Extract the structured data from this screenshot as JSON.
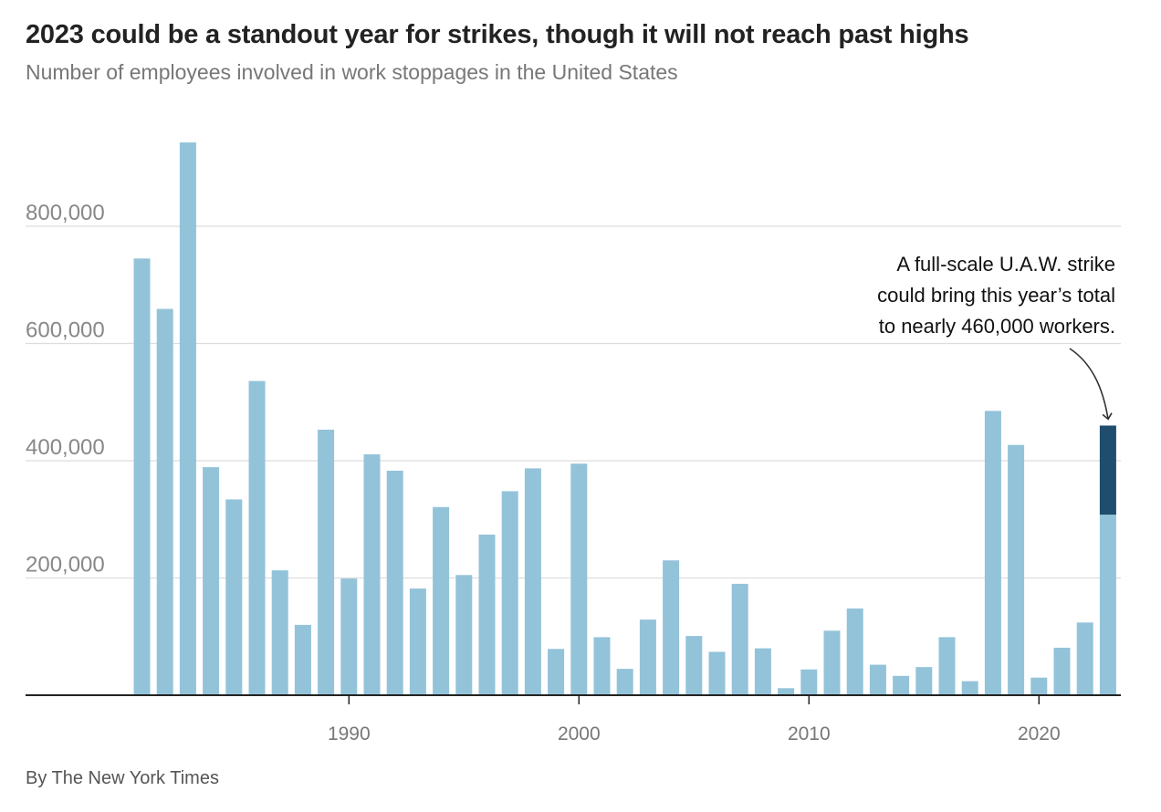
{
  "title": "2023 could be a standout year for strikes, though it will not reach past highs",
  "subtitle": "Number of employees involved in work stoppages in the United States",
  "source": "By The New York Times",
  "colors": {
    "bar": "#93c3d9",
    "highlight": "#1e4d6e",
    "grid": "#dddddd",
    "axis": "#222222"
  },
  "chart_data": {
    "type": "bar",
    "title": "2023 could be a standout year for strikes, though it will not reach past highs",
    "subtitle": "Number of employees involved in work stoppages in the United States",
    "xlabel": "",
    "ylabel": "",
    "ylim": [
      0,
      950000
    ],
    "grid": true,
    "x": [
      1981,
      1982,
      1983,
      1984,
      1985,
      1986,
      1987,
      1988,
      1989,
      1990,
      1991,
      1992,
      1993,
      1994,
      1995,
      1996,
      1997,
      1998,
      1999,
      2000,
      2001,
      2002,
      2003,
      2004,
      2005,
      2006,
      2007,
      2008,
      2009,
      2010,
      2011,
      2012,
      2013,
      2014,
      2015,
      2016,
      2017,
      2018,
      2019,
      2020,
      2021,
      2022,
      2023
    ],
    "values": [
      745000,
      659000,
      943000,
      389000,
      334000,
      536000,
      213000,
      120000,
      453000,
      199000,
      411000,
      383000,
      182000,
      321000,
      205000,
      274000,
      348000,
      387000,
      79000,
      395000,
      99000,
      45000,
      129000,
      230000,
      101000,
      74000,
      190000,
      80000,
      12000,
      44000,
      110000,
      148000,
      52000,
      33000,
      48000,
      99000,
      24000,
      485000,
      427000,
      30000,
      81000,
      124000,
      308000
    ],
    "highlight": {
      "year": 2023,
      "base": 308000,
      "top": 460000
    },
    "y_ticks": [
      {
        "value": 200000,
        "label": "200,000"
      },
      {
        "value": 400000,
        "label": "400,000"
      },
      {
        "value": 600000,
        "label": "600,000"
      },
      {
        "value": 800000,
        "label": "800,000"
      }
    ],
    "x_ticks": [
      {
        "value": 1990,
        "label": "1990"
      },
      {
        "value": 2000,
        "label": "2000"
      },
      {
        "value": 2010,
        "label": "2010"
      },
      {
        "value": 2020,
        "label": "2020"
      }
    ],
    "annotation": {
      "lines": [
        "A full-scale U.A.W. strike",
        "could bring this year’s total",
        "to nearly 460,000 workers."
      ],
      "target_year": 2023,
      "target_value": 460000
    }
  }
}
